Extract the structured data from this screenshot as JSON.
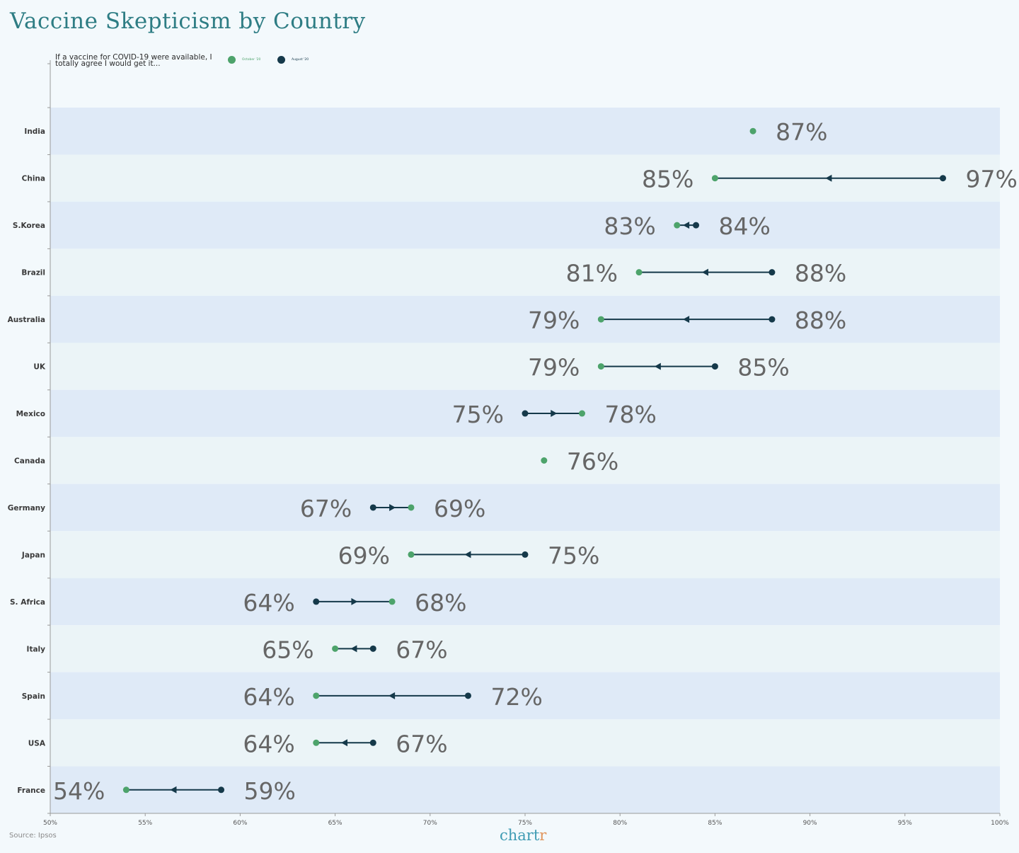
{
  "colors": {
    "october": "#4da36b",
    "august": "#15394a",
    "title": "#2e7d84",
    "band_dark": "#dfeaf7",
    "band_light": "#ebf4f7",
    "value_text": "#666666"
  },
  "source": "Source: Ipsos",
  "logo": {
    "main": "chart",
    "accent": "r"
  },
  "chart_data": {
    "type": "dumbbell",
    "title": "Vaccine Skepticism by Country",
    "subtitle": "If a vaccine for COVID-19 were available, I totally agree I would get it...",
    "legend": [
      {
        "name": "October '20",
        "color": "#4da36b"
      },
      {
        "name": "August '20",
        "color": "#15394a"
      }
    ],
    "legend_position": "top-left",
    "x_range": [
      50,
      100
    ],
    "x_ticks": [
      "50%",
      "55%",
      "60%",
      "65%",
      "70%",
      "75%",
      "80%",
      "85%",
      "90%",
      "95%",
      "100%"
    ],
    "grid": false,
    "categories": [
      "India",
      "China",
      "S.Korea",
      "Brazil",
      "Australia",
      "UK",
      "Mexico",
      "Canada",
      "Germany",
      "Japan",
      "S. Africa",
      "Italy",
      "Spain",
      "USA",
      "France"
    ],
    "series": [
      {
        "name": "October '20",
        "values": [
          87,
          85,
          83,
          81,
          79,
          79,
          78,
          76,
          69,
          69,
          68,
          65,
          64,
          64,
          54
        ]
      },
      {
        "name": "August '20",
        "values": [
          87,
          97,
          84,
          88,
          88,
          85,
          75,
          76,
          67,
          75,
          64,
          67,
          72,
          67,
          59
        ]
      }
    ],
    "value_labels": [
      {
        "left": "",
        "right": "87%"
      },
      {
        "left": "85%",
        "right": "97%"
      },
      {
        "left": "83%",
        "right": "84%"
      },
      {
        "left": "81%",
        "right": "88%"
      },
      {
        "left": "79%",
        "right": "88%"
      },
      {
        "left": "79%",
        "right": "85%"
      },
      {
        "left": "75%",
        "right": "78%"
      },
      {
        "left": "",
        "right": "76%"
      },
      {
        "left": "67%",
        "right": "69%"
      },
      {
        "left": "69%",
        "right": "75%"
      },
      {
        "left": "64%",
        "right": "68%"
      },
      {
        "left": "65%",
        "right": "67%"
      },
      {
        "left": "64%",
        "right": "72%"
      },
      {
        "left": "64%",
        "right": "67%"
      },
      {
        "left": "54%",
        "right": "59%"
      }
    ]
  }
}
